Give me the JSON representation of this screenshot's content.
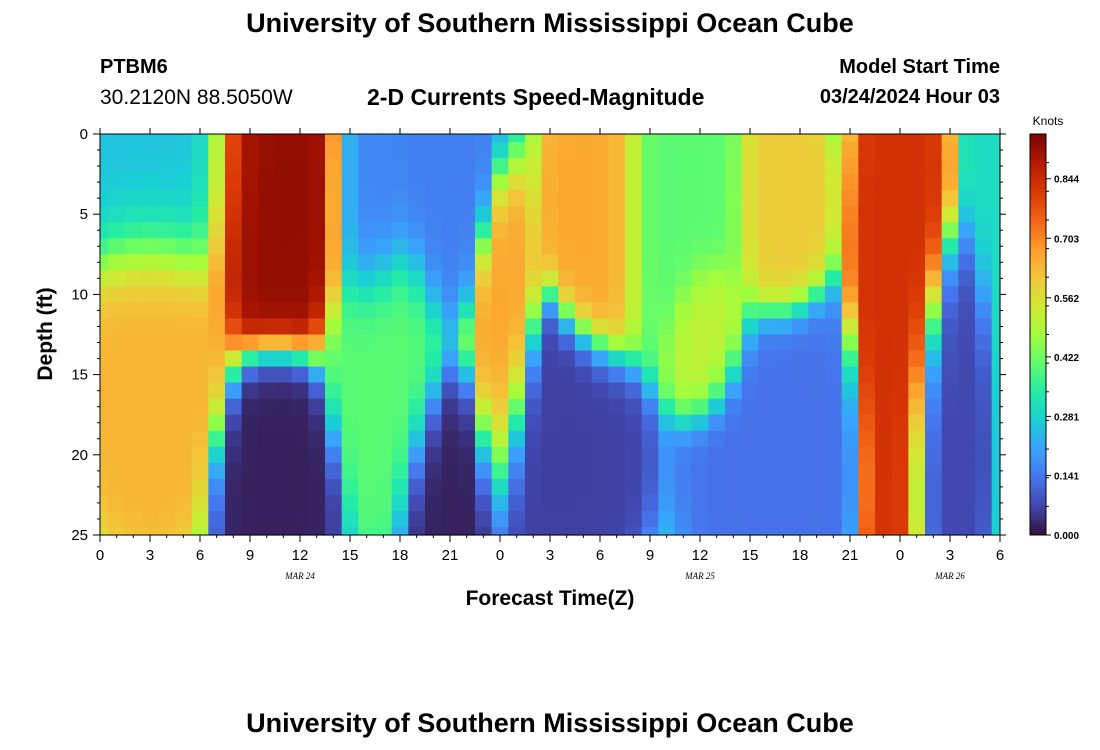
{
  "header": {
    "title": "University of Southern Mississippi Ocean Cube",
    "station": "PTBM6",
    "coordinates": "30.2120N  88.5050W",
    "subtitle": "2-D Currents Speed-Magnitude",
    "model_start_label": "Model Start Time",
    "model_start_value": "03/24/2024 Hour 03"
  },
  "footer": {
    "title": "University of Southern Mississippi Ocean Cube"
  },
  "chart_data": {
    "type": "heatmap",
    "title": "2-D Currents Speed-Magnitude",
    "xlabel": "Forecast Time(Z)",
    "ylabel": "Depth (ft)",
    "x_hours_range": [
      0,
      54
    ],
    "x_tick_hours": [
      0,
      3,
      6,
      9,
      12,
      15,
      18,
      21,
      24,
      27,
      30,
      33,
      36,
      39,
      42,
      45,
      48,
      51,
      54
    ],
    "x_tick_labels": [
      "0",
      "3",
      "6",
      "9",
      "12",
      "15",
      "18",
      "21",
      "0",
      "3",
      "6",
      "9",
      "12",
      "15",
      "18",
      "21",
      "0",
      "3",
      "6"
    ],
    "date_labels": [
      {
        "text": "MAR 24",
        "hour": 12
      },
      {
        "text": "MAR 25",
        "hour": 36
      },
      {
        "text": "MAR 26",
        "hour": 51
      }
    ],
    "depth_range": [
      0,
      25
    ],
    "y_ticks": [
      0,
      5,
      10,
      15,
      20,
      25
    ],
    "y_tick_labels": [
      "0",
      "5",
      "10",
      "15",
      "20",
      "25"
    ],
    "colorbar": {
      "unit": "Knots",
      "range": [
        0.0,
        0.95
      ],
      "ticks": [
        0.0,
        0.141,
        0.281,
        0.422,
        0.562,
        0.703,
        0.844
      ],
      "tick_labels": [
        "0.000",
        "0.141",
        "0.281",
        "0.422",
        "0.562",
        "0.703",
        "0.844"
      ],
      "colormap": [
        "#30123b",
        "#4145ab",
        "#4675ed",
        "#39a2fc",
        "#1bcfd4",
        "#24eca6",
        "#61fc6c",
        "#a4fc3b",
        "#d1e834",
        "#f3c63a",
        "#fe9b2d",
        "#f36315",
        "#d93806",
        "#b11901",
        "#7a0402"
      ]
    },
    "grid": {
      "time_step_hours": 1,
      "depth_step_ft": 1,
      "depths_ft": [
        0,
        1,
        2,
        3,
        4,
        5,
        6,
        7,
        8,
        9,
        10,
        11,
        12,
        13,
        14,
        15,
        16,
        17,
        18,
        19,
        20,
        21,
        22,
        23,
        24,
        25
      ]
    },
    "speed_features": [
      {
        "hour": 3,
        "depth": 3,
        "speed": 0.25,
        "w_h": 3.0,
        "w_d": 4.5
      },
      {
        "hour": 3,
        "depth": 13,
        "speed": 0.64,
        "w_h": 2.4,
        "w_d": 6.0
      },
      {
        "hour": 10.5,
        "depth": 4,
        "speed": 0.92,
        "w_h": 2.4,
        "w_d": 5.0
      },
      {
        "hour": 10.5,
        "depth": 21,
        "speed": 0.02,
        "w_h": 1.8,
        "w_d": 4.0
      },
      {
        "hour": 16.5,
        "depth": 4,
        "speed": 0.16,
        "w_h": 1.5,
        "w_d": 4.5
      },
      {
        "hour": 17.5,
        "depth": 14,
        "speed": 0.4,
        "w_h": 2.0,
        "w_d": 5.0
      },
      {
        "hour": 20.5,
        "depth": 4,
        "speed": 0.15,
        "w_h": 1.5,
        "w_d": 5.0
      },
      {
        "hour": 21,
        "depth": 21,
        "speed": 0.02,
        "w_h": 1.5,
        "w_d": 4.0
      },
      {
        "hour": 24,
        "depth": 14,
        "speed": 0.66,
        "w_h": 1.1,
        "w_d": 5.0
      },
      {
        "hour": 27.5,
        "depth": 20,
        "speed": 0.06,
        "w_h": 2.4,
        "w_d": 4.5
      },
      {
        "hour": 30,
        "depth": 4,
        "speed": 0.66,
        "w_h": 1.6,
        "w_d": 5.0
      },
      {
        "hour": 35,
        "depth": 4,
        "speed": 0.4,
        "w_h": 2.5,
        "w_d": 5.0
      },
      {
        "hour": 36.5,
        "depth": 12,
        "speed": 0.52,
        "w_h": 1.3,
        "w_d": 3.0
      },
      {
        "hour": 40.5,
        "depth": 4,
        "speed": 0.6,
        "w_h": 1.5,
        "w_d": 4.0
      },
      {
        "hour": 40.5,
        "depth": 20,
        "speed": 0.13,
        "w_h": 2.5,
        "w_d": 5.0
      },
      {
        "hour": 48,
        "depth": 12,
        "speed": 0.83,
        "w_h": 1.3,
        "w_d": 12.0
      },
      {
        "hour": 50.5,
        "depth": 20,
        "speed": 0.07,
        "w_h": 1.2,
        "w_d": 6.0
      }
    ],
    "background_speed": 0.3
  }
}
